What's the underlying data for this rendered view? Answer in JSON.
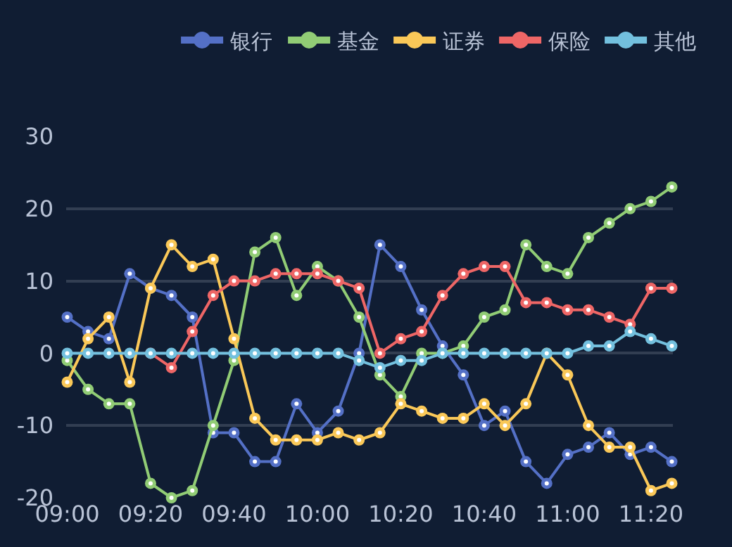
{
  "chart_data": {
    "type": "line",
    "categories": [
      "09:00",
      null,
      null,
      null,
      "09:20",
      null,
      null,
      null,
      "09:40",
      null,
      null,
      null,
      "10:00",
      null,
      null,
      null,
      "10:20",
      null,
      null,
      null,
      "10:40",
      null,
      null,
      null,
      "11:00",
      null,
      null,
      null,
      "11:20",
      null
    ],
    "series": [
      {
        "name": "银行",
        "color": "#5470c6",
        "values": [
          5,
          3,
          2,
          11,
          9,
          8,
          5,
          -11,
          -11,
          -15,
          -15,
          -7,
          -11,
          -8,
          0,
          15,
          12,
          6,
          1,
          -3,
          -10,
          -8,
          -15,
          -18,
          -14,
          -13,
          -11,
          -14,
          -13,
          -15
        ]
      },
      {
        "name": "基金",
        "color": "#91cc75",
        "values": [
          -1,
          -5,
          -7,
          -7,
          -18,
          -20,
          -19,
          -10,
          -1,
          14,
          16,
          8,
          12,
          10,
          5,
          -3,
          -6,
          0,
          0,
          1,
          5,
          6,
          15,
          12,
          11,
          16,
          18,
          20,
          21,
          23
        ]
      },
      {
        "name": "证券",
        "color": "#fac858",
        "values": [
          -4,
          2,
          5,
          -4,
          9,
          15,
          12,
          13,
          2,
          -9,
          -12,
          -12,
          -12,
          -11,
          -12,
          -11,
          -7,
          -8,
          -9,
          -9,
          -7,
          -10,
          -7,
          0,
          -3,
          -10,
          -13,
          -13,
          -19,
          -18
        ]
      },
      {
        "name": "保险",
        "color": "#ee6666",
        "values": [
          null,
          null,
          null,
          null,
          0,
          -2,
          3,
          8,
          10,
          10,
          11,
          11,
          11,
          10,
          9,
          0,
          2,
          3,
          8,
          11,
          12,
          12,
          7,
          7,
          6,
          6,
          5,
          4,
          9,
          9
        ]
      },
      {
        "name": "其他",
        "color": "#73c0de",
        "values": [
          0,
          0,
          0,
          0,
          0,
          0,
          0,
          0,
          0,
          0,
          0,
          0,
          0,
          0,
          -1,
          -2,
          -1,
          -1,
          0,
          0,
          0,
          0,
          0,
          0,
          0,
          1,
          1,
          3,
          2,
          1
        ]
      }
    ],
    "ylim": [
      -20,
      30
    ],
    "yticks": [
      -20,
      -10,
      0,
      10,
      20,
      30
    ],
    "grid": "y",
    "legend": "top",
    "marker": "circle",
    "line_style": "solid"
  }
}
